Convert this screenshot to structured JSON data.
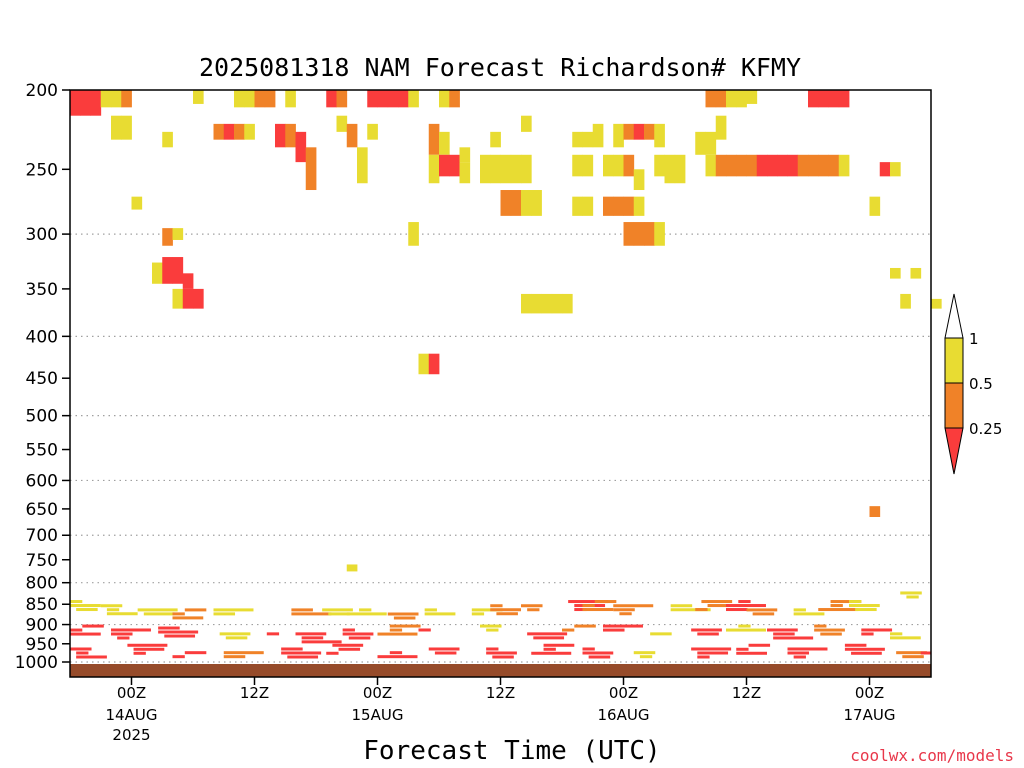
{
  "chart_data": {
    "type": "heatmap",
    "title": "2025081318 NAM Forecast Richardson# KFMY",
    "xlabel": "Forecast Time (UTC)",
    "credit": "coolwx.com/models",
    "y_axis": {
      "scale": "pressure (log)",
      "range": [
        200,
        1000
      ],
      "ticks": [
        200,
        250,
        300,
        350,
        400,
        450,
        500,
        550,
        600,
        650,
        700,
        750,
        800,
        850,
        900,
        950,
        1000
      ],
      "dotted_gridlines": [
        300,
        400,
        500,
        600,
        700,
        800,
        900,
        1000
      ]
    },
    "x_axis": {
      "range_hours": [
        0,
        84
      ],
      "ticks": [
        {
          "hour": 6,
          "label": "00Z",
          "sub": "14AUG",
          "sub2": "2025"
        },
        {
          "hour": 18,
          "label": "12Z",
          "sub": "",
          "sub2": ""
        },
        {
          "hour": 30,
          "label": "00Z",
          "sub": "15AUG",
          "sub2": ""
        },
        {
          "hour": 42,
          "label": "12Z",
          "sub": "",
          "sub2": ""
        },
        {
          "hour": 54,
          "label": "00Z",
          "sub": "16AUG",
          "sub2": ""
        },
        {
          "hour": 66,
          "label": "12Z",
          "sub": "",
          "sub2": ""
        },
        {
          "hour": 78,
          "label": "00Z",
          "sub": "17AUG",
          "sub2": ""
        }
      ]
    },
    "colorbar": {
      "labels": [
        "1",
        "0.5",
        "0.25"
      ],
      "bins": [
        {
          "range": "0.5-1",
          "color": "#e8dc32"
        },
        {
          "range": "0.25-0.5",
          "color": "#f08228"
        },
        {
          "range": "<0.25",
          "color": "#fa3c3c"
        },
        {
          "range": ">1",
          "color": "#ffffff"
        }
      ]
    },
    "cells": [
      [
        0,
        200,
        215,
        "R"
      ],
      [
        1,
        200,
        215,
        "R"
      ],
      [
        2,
        200,
        215,
        "R"
      ],
      [
        3,
        200,
        210,
        "Y"
      ],
      [
        4,
        200,
        210,
        "Y"
      ],
      [
        5,
        200,
        210,
        "O"
      ],
      [
        4,
        215,
        230,
        "Y"
      ],
      [
        5,
        215,
        230,
        "Y"
      ],
      [
        9,
        225,
        235,
        "Y"
      ],
      [
        6,
        270,
        280,
        "Y"
      ],
      [
        12,
        200,
        208,
        "Y"
      ],
      [
        16,
        200,
        210,
        "Y"
      ],
      [
        17,
        200,
        210,
        "Y"
      ],
      [
        18,
        200,
        210,
        "O"
      ],
      [
        19,
        200,
        210,
        "O"
      ],
      [
        14,
        220,
        230,
        "O"
      ],
      [
        15,
        220,
        230,
        "R"
      ],
      [
        16,
        220,
        230,
        "O"
      ],
      [
        17,
        220,
        230,
        "Y"
      ],
      [
        21,
        200,
        210,
        "Y"
      ],
      [
        25,
        200,
        210,
        "R"
      ],
      [
        26,
        200,
        210,
        "O"
      ],
      [
        29,
        200,
        210,
        "R"
      ],
      [
        30,
        200,
        210,
        "R"
      ],
      [
        31,
        200,
        210,
        "R"
      ],
      [
        32,
        200,
        210,
        "R"
      ],
      [
        33,
        200,
        210,
        "Y"
      ],
      [
        20,
        220,
        235,
        "R"
      ],
      [
        21,
        220,
        235,
        "O"
      ],
      [
        22,
        225,
        245,
        "R"
      ],
      [
        23,
        235,
        265,
        "O"
      ],
      [
        26,
        215,
        225,
        "Y"
      ],
      [
        27,
        220,
        235,
        "O"
      ],
      [
        28,
        235,
        260,
        "Y"
      ],
      [
        29,
        220,
        230,
        "Y"
      ],
      [
        36,
        200,
        210,
        "Y"
      ],
      [
        37,
        200,
        210,
        "O"
      ],
      [
        35,
        220,
        240,
        "O"
      ],
      [
        36,
        225,
        240,
        "Y"
      ],
      [
        35,
        240,
        260,
        "Y"
      ],
      [
        36,
        240,
        255,
        "R"
      ],
      [
        37,
        240,
        255,
        "R"
      ],
      [
        38,
        235,
        245,
        "Y"
      ],
      [
        38,
        245,
        260,
        "Y"
      ],
      [
        40,
        240,
        260,
        "Y"
      ],
      [
        41,
        240,
        260,
        "Y"
      ],
      [
        42,
        240,
        260,
        "Y"
      ],
      [
        43,
        240,
        260,
        "Y"
      ],
      [
        44,
        240,
        260,
        "Y"
      ],
      [
        42,
        265,
        285,
        "O"
      ],
      [
        43,
        265,
        285,
        "O"
      ],
      [
        44,
        265,
        285,
        "Y"
      ],
      [
        45,
        265,
        285,
        "Y"
      ],
      [
        41,
        225,
        235,
        "Y"
      ],
      [
        44,
        215,
        225,
        "Y"
      ],
      [
        49,
        225,
        235,
        "Y"
      ],
      [
        50,
        225,
        235,
        "Y"
      ],
      [
        51,
        220,
        235,
        "Y"
      ],
      [
        53,
        220,
        235,
        "Y"
      ],
      [
        54,
        220,
        230,
        "O"
      ],
      [
        55,
        220,
        230,
        "R"
      ],
      [
        56,
        220,
        230,
        "O"
      ],
      [
        57,
        220,
        235,
        "Y"
      ],
      [
        49,
        240,
        255,
        "Y"
      ],
      [
        50,
        240,
        255,
        "Y"
      ],
      [
        52,
        240,
        255,
        "Y"
      ],
      [
        53,
        240,
        255,
        "Y"
      ],
      [
        54,
        240,
        255,
        "O"
      ],
      [
        55,
        250,
        265,
        "Y"
      ],
      [
        57,
        240,
        255,
        "Y"
      ],
      [
        49,
        270,
        285,
        "Y"
      ],
      [
        50,
        270,
        285,
        "Y"
      ],
      [
        52,
        270,
        285,
        "O"
      ],
      [
        53,
        270,
        285,
        "O"
      ],
      [
        54,
        270,
        285,
        "O"
      ],
      [
        55,
        270,
        285,
        "Y"
      ],
      [
        54,
        290,
        310,
        "O"
      ],
      [
        55,
        290,
        310,
        "O"
      ],
      [
        56,
        290,
        310,
        "O"
      ],
      [
        57,
        290,
        310,
        "Y"
      ],
      [
        33,
        290,
        310,
        "Y"
      ],
      [
        58,
        240,
        260,
        "Y"
      ],
      [
        59,
        240,
        260,
        "Y"
      ],
      [
        61,
        225,
        240,
        "Y"
      ],
      [
        62,
        225,
        240,
        "Y"
      ],
      [
        63,
        215,
        230,
        "Y"
      ],
      [
        62,
        200,
        210,
        "O"
      ],
      [
        63,
        200,
        210,
        "O"
      ],
      [
        64,
        200,
        210,
        "Y"
      ],
      [
        65,
        200,
        210,
        "Y"
      ],
      [
        66,
        200,
        208,
        "Y"
      ],
      [
        62,
        240,
        255,
        "Y"
      ],
      [
        63,
        240,
        255,
        "O"
      ],
      [
        64,
        240,
        255,
        "O"
      ],
      [
        65,
        240,
        255,
        "O"
      ],
      [
        66,
        240,
        255,
        "O"
      ],
      [
        67,
        240,
        255,
        "R"
      ],
      [
        68,
        240,
        255,
        "R"
      ],
      [
        69,
        240,
        255,
        "R"
      ],
      [
        70,
        240,
        255,
        "R"
      ],
      [
        71,
        240,
        255,
        "O"
      ],
      [
        72,
        240,
        255,
        "O"
      ],
      [
        73,
        240,
        255,
        "O"
      ],
      [
        74,
        240,
        255,
        "O"
      ],
      [
        75,
        240,
        255,
        "Y"
      ],
      [
        72,
        200,
        210,
        "R"
      ],
      [
        73,
        200,
        210,
        "R"
      ],
      [
        74,
        200,
        210,
        "R"
      ],
      [
        75,
        200,
        210,
        "R"
      ],
      [
        79,
        245,
        255,
        "R"
      ],
      [
        80,
        245,
        255,
        "Y"
      ],
      [
        78,
        270,
        285,
        "Y"
      ],
      [
        80,
        330,
        340,
        "Y"
      ],
      [
        82,
        330,
        340,
        "Y"
      ],
      [
        81,
        355,
        370,
        "Y"
      ],
      [
        84,
        360,
        370,
        "Y"
      ],
      [
        9,
        295,
        310,
        "O"
      ],
      [
        10,
        295,
        305,
        "Y"
      ],
      [
        8,
        325,
        345,
        "Y"
      ],
      [
        9,
        320,
        345,
        "R"
      ],
      [
        10,
        320,
        345,
        "R"
      ],
      [
        11,
        335,
        350,
        "R"
      ],
      [
        10,
        350,
        370,
        "Y"
      ],
      [
        11,
        350,
        370,
        "R"
      ],
      [
        12,
        350,
        370,
        "R"
      ],
      [
        44,
        355,
        375,
        "Y"
      ],
      [
        45,
        355,
        375,
        "Y"
      ],
      [
        46,
        355,
        375,
        "Y"
      ],
      [
        47,
        355,
        375,
        "Y"
      ],
      [
        48,
        355,
        375,
        "Y"
      ],
      [
        34,
        420,
        445,
        "Y"
      ],
      [
        35,
        420,
        445,
        "R"
      ],
      [
        78,
        645,
        665,
        "O"
      ],
      [
        27,
        760,
        775,
        "Y"
      ]
    ],
    "bands": [
      [
        0,
        840,
        870,
        "Y"
      ],
      [
        3,
        850,
        880,
        "Y"
      ],
      [
        6,
        860,
        880,
        "Y"
      ],
      [
        10,
        860,
        890,
        "O"
      ],
      [
        14,
        860,
        880,
        "Y"
      ],
      [
        21,
        860,
        880,
        "O"
      ],
      [
        24,
        860,
        880,
        "Y"
      ],
      [
        27,
        860,
        880,
        "Y"
      ],
      [
        31,
        870,
        890,
        "O"
      ],
      [
        34,
        860,
        880,
        "Y"
      ],
      [
        38,
        860,
        880,
        "Y"
      ],
      [
        41,
        850,
        880,
        "O"
      ],
      [
        44,
        850,
        870,
        "O"
      ],
      [
        48,
        840,
        870,
        "R"
      ],
      [
        50,
        840,
        870,
        "O"
      ],
      [
        53,
        850,
        880,
        "O"
      ],
      [
        58,
        850,
        870,
        "Y"
      ],
      [
        61,
        840,
        870,
        "O"
      ],
      [
        64,
        840,
        870,
        "R"
      ],
      [
        66,
        860,
        880,
        "O"
      ],
      [
        70,
        860,
        880,
        "Y"
      ],
      [
        73,
        840,
        870,
        "O"
      ],
      [
        76,
        840,
        870,
        "Y"
      ],
      [
        81,
        820,
        840,
        "Y"
      ],
      [
        84,
        840,
        860,
        "Y"
      ],
      [
        0,
        900,
        940,
        "R"
      ],
      [
        4,
        910,
        950,
        "R"
      ],
      [
        8,
        905,
        940,
        "R"
      ],
      [
        14,
        920,
        950,
        "Y"
      ],
      [
        18,
        920,
        940,
        "R"
      ],
      [
        22,
        920,
        960,
        "R"
      ],
      [
        26,
        910,
        950,
        "R"
      ],
      [
        30,
        900,
        940,
        "O"
      ],
      [
        34,
        910,
        930,
        "R"
      ],
      [
        40,
        900,
        930,
        "Y"
      ],
      [
        44,
        920,
        950,
        "R"
      ],
      [
        48,
        900,
        930,
        "O"
      ],
      [
        52,
        900,
        930,
        "R"
      ],
      [
        56,
        920,
        940,
        "Y"
      ],
      [
        60,
        910,
        940,
        "R"
      ],
      [
        64,
        900,
        930,
        "Y"
      ],
      [
        68,
        910,
        950,
        "R"
      ],
      [
        72,
        900,
        940,
        "O"
      ],
      [
        76,
        910,
        940,
        "R"
      ],
      [
        80,
        920,
        950,
        "Y"
      ],
      [
        0,
        960,
        1000,
        "R"
      ],
      [
        5,
        950,
        990,
        "R"
      ],
      [
        10,
        970,
        1000,
        "R"
      ],
      [
        15,
        970,
        1000,
        "O"
      ],
      [
        20,
        960,
        1000,
        "R"
      ],
      [
        25,
        950,
        990,
        "R"
      ],
      [
        30,
        970,
        1000,
        "R"
      ],
      [
        35,
        960,
        990,
        "R"
      ],
      [
        40,
        960,
        1000,
        "R"
      ],
      [
        45,
        950,
        990,
        "R"
      ],
      [
        50,
        960,
        1000,
        "R"
      ],
      [
        55,
        970,
        1000,
        "Y"
      ],
      [
        60,
        960,
        1000,
        "R"
      ],
      [
        65,
        950,
        990,
        "R"
      ],
      [
        70,
        960,
        1000,
        "R"
      ],
      [
        75,
        950,
        990,
        "R"
      ],
      [
        80,
        970,
        1000,
        "O"
      ],
      [
        83,
        960,
        990,
        "R"
      ]
    ]
  }
}
